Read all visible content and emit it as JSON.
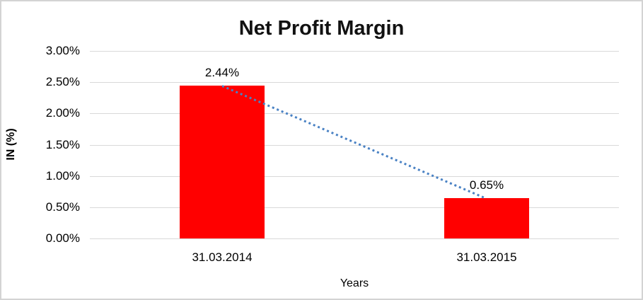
{
  "chart": {
    "title": "Net Profit Margin",
    "y_axis_title": "IN (%)",
    "x_axis_title": "Years",
    "colors": {
      "bar": "#ff0000",
      "trendline": "#4a82c4",
      "gridline": "#d9d9d9",
      "text": "#000000",
      "frame_border": "#d3d3d3"
    }
  },
  "chart_data": {
    "type": "bar",
    "title": "Net Profit Margin",
    "xlabel": "Years",
    "ylabel": "IN (%)",
    "categories": [
      "31.03.2014",
      "31.03.2015"
    ],
    "values": [
      2.44,
      0.65
    ],
    "data_labels": [
      "2.44%",
      "0.65%"
    ],
    "ylim": [
      0,
      3
    ],
    "y_tick_values": [
      3.0,
      2.5,
      2.0,
      1.5,
      1.0,
      0.5,
      0.0
    ],
    "y_tick_labels": [
      "3.00%",
      "2.50%",
      "2.00%",
      "1.50%",
      "1.00%",
      "0.50%",
      "0.00%"
    ],
    "grid": true,
    "legend": "none",
    "trendline": {
      "style": "dotted",
      "from_value": 2.44,
      "to_value": 0.65
    }
  }
}
